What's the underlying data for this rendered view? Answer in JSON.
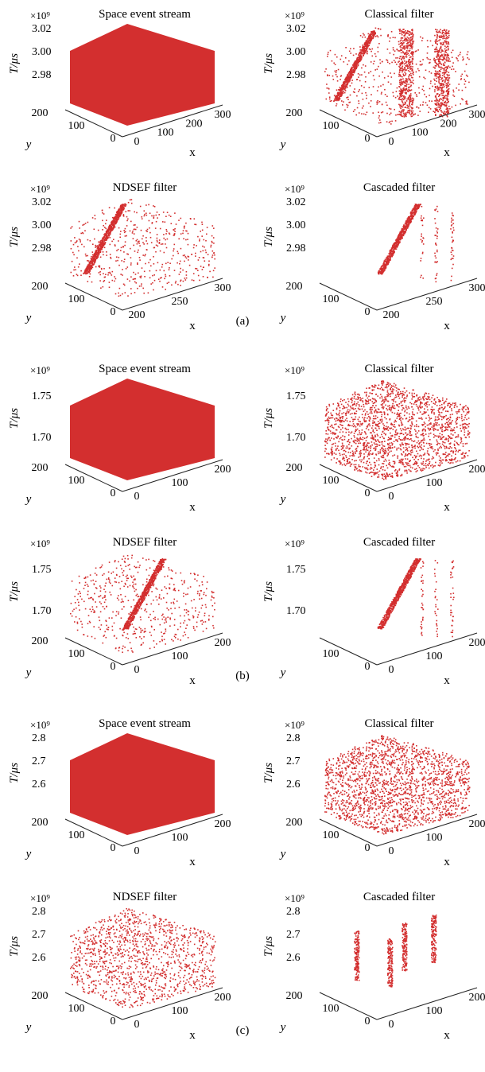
{
  "figure_captions": [
    "(a)",
    "(b)",
    "(c)"
  ],
  "chart_data": [
    {
      "type": "scatter",
      "panel": "(a)",
      "title": "Space event stream",
      "color": "#d32f2f",
      "zlabel": "T/μs",
      "exponent": "×10⁹",
      "xlabel": "x",
      "ylabel": "y",
      "zticks": [
        "3.02",
        "3.00",
        "2.98"
      ],
      "yticks": [
        "200",
        "100",
        "0"
      ],
      "xticks": [
        "0",
        "100",
        "200",
        "300"
      ],
      "zlim": [
        2.97,
        3.03
      ],
      "xlim": [
        0,
        300
      ],
      "ylim": [
        0,
        200
      ],
      "distribution": "dense-box"
    },
    {
      "type": "scatter",
      "panel": "(a)",
      "title": "Classical filter",
      "color": "#d32f2f",
      "zlabel": "T/μs",
      "exponent": "×10⁹",
      "xlabel": "x",
      "ylabel": "y",
      "zticks": [
        "3.02",
        "3.00",
        "2.98"
      ],
      "yticks": [
        "200",
        "100",
        "0"
      ],
      "xticks": [
        "0",
        "100",
        "200",
        "300"
      ],
      "zlim": [
        2.97,
        3.03
      ],
      "xlim": [
        0,
        300
      ],
      "ylim": [
        0,
        200
      ],
      "distribution": "band-plus-sparse"
    },
    {
      "type": "scatter",
      "panel": "(a)",
      "title": "NDSEF filter",
      "color": "#d32f2f",
      "zlabel": "T/μs",
      "exponent": "×10⁹",
      "xlabel": "x",
      "ylabel": "y",
      "zticks": [
        "3.02",
        "3.00",
        "2.98"
      ],
      "yticks": [
        "200",
        "100",
        "0"
      ],
      "xticks": [
        "200",
        "250",
        "300"
      ],
      "zlim": [
        2.97,
        3.03
      ],
      "xlim": [
        200,
        300
      ],
      "ylim": [
        0,
        200
      ],
      "distribution": "band-plus-noise"
    },
    {
      "type": "scatter",
      "panel": "(a)",
      "title": "Cascaded filter",
      "color": "#d32f2f",
      "zlabel": "T/μs",
      "exponent": "×10⁹",
      "xlabel": "x",
      "ylabel": "y",
      "zticks": [
        "3.02",
        "3.00",
        "2.98"
      ],
      "yticks": [
        "200",
        "100",
        "0"
      ],
      "xticks": [
        "200",
        "250",
        "300"
      ],
      "zlim": [
        2.97,
        3.03
      ],
      "xlim": [
        200,
        300
      ],
      "ylim": [
        0,
        200
      ],
      "distribution": "band-plus-lines"
    },
    {
      "type": "scatter",
      "panel": "(b)",
      "title": "Space event stream",
      "color": "#d32f2f",
      "zlabel": "T/μs",
      "exponent": "×10⁹",
      "xlabel": "x",
      "ylabel": "y",
      "zticks": [
        "1.75",
        "1.70"
      ],
      "yticks": [
        "200",
        "100",
        "0"
      ],
      "xticks": [
        "0",
        "100",
        "200"
      ],
      "zlim": [
        1.68,
        1.76
      ],
      "xlim": [
        0,
        240
      ],
      "ylim": [
        0,
        200
      ],
      "distribution": "dense-box"
    },
    {
      "type": "scatter",
      "panel": "(b)",
      "title": "Classical filter",
      "color": "#d32f2f",
      "zlabel": "T/μs",
      "exponent": "×10⁹",
      "xlabel": "x",
      "ylabel": "y",
      "zticks": [
        "1.75",
        "1.70"
      ],
      "yticks": [
        "200",
        "100",
        "0"
      ],
      "xticks": [
        "0",
        "100",
        "200"
      ],
      "zlim": [
        1.68,
        1.76
      ],
      "xlim": [
        0,
        240
      ],
      "ylim": [
        0,
        200
      ],
      "distribution": "mostly-dense"
    },
    {
      "type": "scatter",
      "panel": "(b)",
      "title": "NDSEF filter",
      "color": "#d32f2f",
      "zlabel": "T/μs",
      "exponent": "×10⁹",
      "xlabel": "x",
      "ylabel": "y",
      "zticks": [
        "1.75",
        "1.70"
      ],
      "yticks": [
        "200",
        "100",
        "0"
      ],
      "xticks": [
        "0",
        "100",
        "200"
      ],
      "zlim": [
        1.68,
        1.76
      ],
      "xlim": [
        0,
        240
      ],
      "ylim": [
        0,
        200
      ],
      "distribution": "band-plus-noise"
    },
    {
      "type": "scatter",
      "panel": "(b)",
      "title": "Cascaded filter",
      "color": "#d32f2f",
      "zlabel": "T/μs",
      "exponent": "×10⁹",
      "xlabel": "x",
      "ylabel": "y",
      "zticks": [
        "1.75",
        "1.70"
      ],
      "yticks": [
        "100",
        "0"
      ],
      "xticks": [
        "0",
        "100",
        "200"
      ],
      "zlim": [
        1.68,
        1.76
      ],
      "xlim": [
        0,
        240
      ],
      "ylim": [
        0,
        200
      ],
      "distribution": "band-plus-lines"
    },
    {
      "type": "scatter",
      "panel": "(c)",
      "title": "Space event stream",
      "color": "#d32f2f",
      "zlabel": "T/μs",
      "exponent": "×10⁹",
      "xlabel": "x",
      "ylabel": "y",
      "zticks": [
        "2.8",
        "2.7",
        "2.6"
      ],
      "yticks": [
        "200",
        "100",
        "0"
      ],
      "xticks": [
        "0",
        "100",
        "200"
      ],
      "zlim": [
        2.5,
        2.85
      ],
      "xlim": [
        0,
        240
      ],
      "ylim": [
        0,
        200
      ],
      "distribution": "dense-box"
    },
    {
      "type": "scatter",
      "panel": "(c)",
      "title": "Classical filter",
      "color": "#d32f2f",
      "zlabel": "T/μs",
      "exponent": "×10⁹",
      "xlabel": "x",
      "ylabel": "y",
      "zticks": [
        "2.8",
        "2.7",
        "2.6"
      ],
      "yticks": [
        "200",
        "100",
        "0"
      ],
      "xticks": [
        "0",
        "100",
        "200"
      ],
      "zlim": [
        2.5,
        2.85
      ],
      "xlim": [
        0,
        240
      ],
      "ylim": [
        0,
        200
      ],
      "distribution": "mostly-dense"
    },
    {
      "type": "scatter",
      "panel": "(c)",
      "title": "NDSEF filter",
      "color": "#d32f2f",
      "zlabel": "T/μs",
      "exponent": "×10⁹",
      "xlabel": "x",
      "ylabel": "y",
      "zticks": [
        "2.8",
        "2.7",
        "2.6"
      ],
      "yticks": [
        "200",
        "100",
        "0"
      ],
      "xticks": [
        "0",
        "100",
        "200"
      ],
      "zlim": [
        2.5,
        2.85
      ],
      "xlim": [
        0,
        240
      ],
      "ylim": [
        0,
        200
      ],
      "distribution": "noisy-box"
    },
    {
      "type": "scatter",
      "panel": "(c)",
      "title": "Cascaded filter",
      "color": "#d32f2f",
      "zlabel": "T/μs",
      "exponent": "×10⁹",
      "xlabel": "x",
      "ylabel": "y",
      "zticks": [
        "2.8",
        "2.7",
        "2.6"
      ],
      "yticks": [
        "200",
        "100",
        "0"
      ],
      "xticks": [
        "0",
        "100",
        "200"
      ],
      "zlim": [
        2.5,
        2.85
      ],
      "xlim": [
        0,
        240
      ],
      "ylim": [
        0,
        200
      ],
      "distribution": "lines"
    }
  ]
}
